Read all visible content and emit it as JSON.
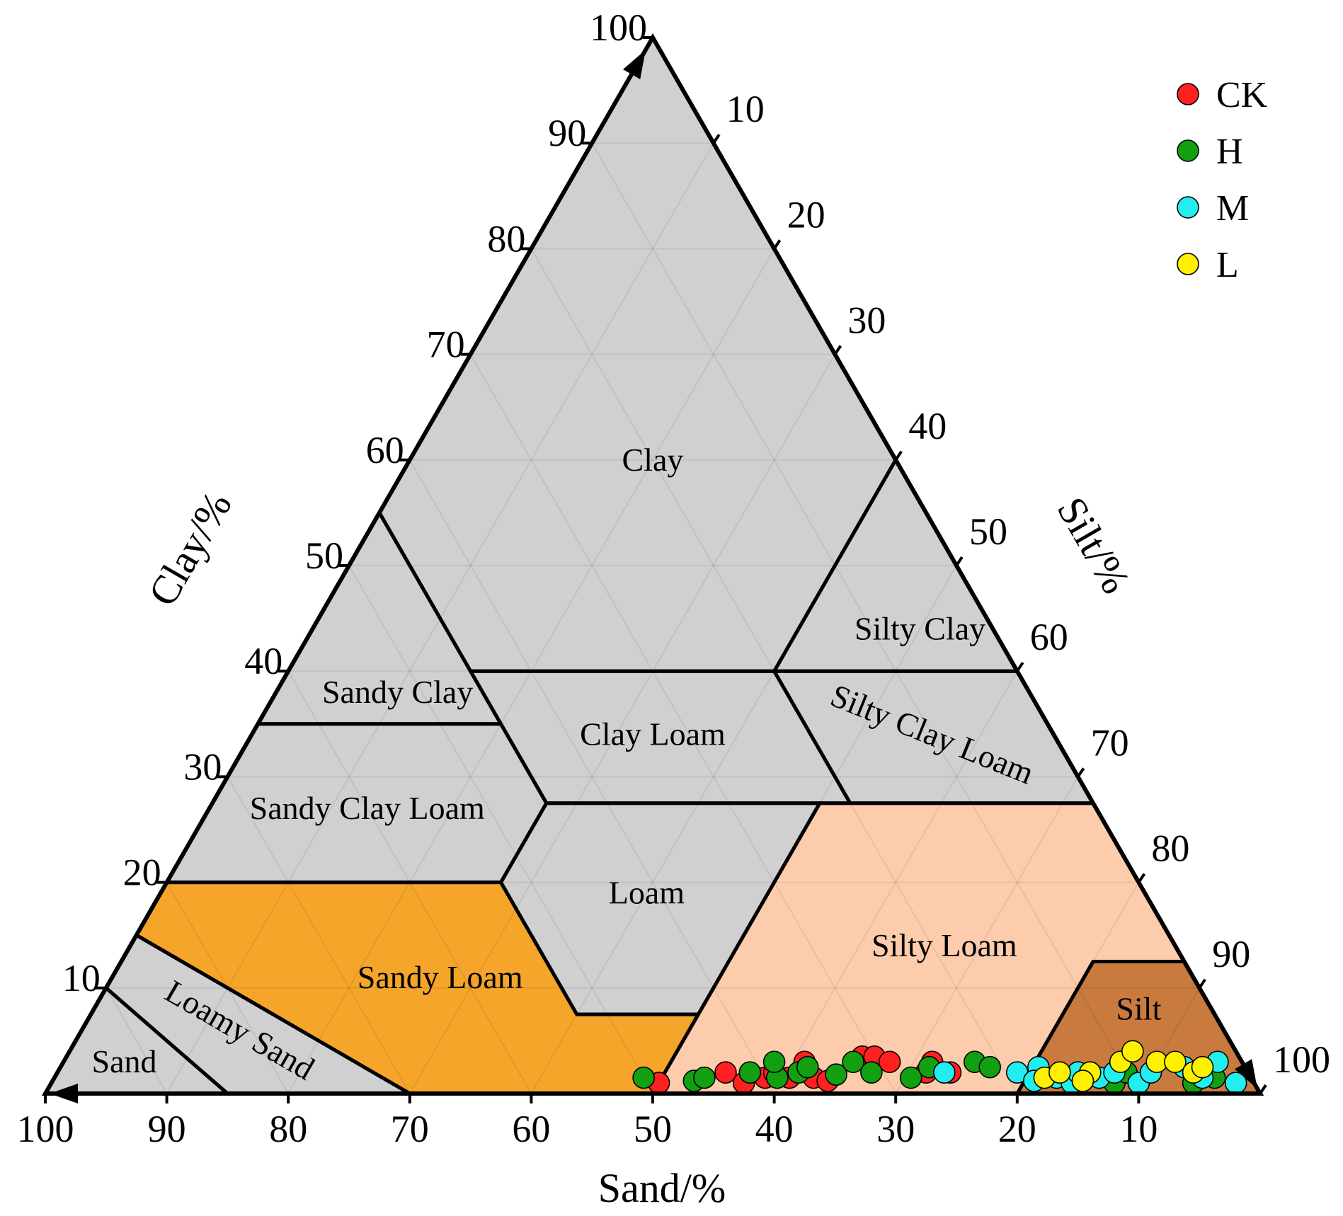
{
  "chart_data": {
    "type": "scatter",
    "subtype": "ternary",
    "axes": {
      "sand": {
        "label": "Sand/%",
        "ticks": [
          "100",
          "90",
          "80",
          "70",
          "60",
          "50",
          "40",
          "30",
          "20",
          "10"
        ]
      },
      "clay": {
        "label": "Clay/%",
        "ticks": [
          "10",
          "20",
          "30",
          "40",
          "50",
          "60",
          "70",
          "80",
          "90",
          "100"
        ]
      },
      "silt": {
        "label": "Silt/%",
        "ticks": [
          "10",
          "20",
          "30",
          "40",
          "50",
          "60",
          "70",
          "80",
          "90",
          "100"
        ]
      }
    },
    "grid": true,
    "legend_position": "top-right",
    "regions": [
      {
        "name": "Clay",
        "label": "Clay",
        "color": "#d0d0d0",
        "vertices": [
          [
            0,
            100,
            0
          ],
          [
            0,
            60,
            40
          ],
          [
            20,
            40,
            40
          ],
          [
            45,
            40,
            15
          ],
          [
            45,
            55,
            0
          ]
        ],
        "label_at": [
          20,
          60,
          20
        ]
      },
      {
        "name": "Sandy Clay",
        "label": "Sandy Clay",
        "color": "#d0d0d0",
        "vertices": [
          [
            45,
            55,
            0
          ],
          [
            45,
            35,
            20
          ],
          [
            65,
            35,
            0
          ]
        ],
        "label_at": [
          52,
          38,
          10
        ]
      },
      {
        "name": "Silty Clay",
        "label": "Silty Clay",
        "color": "#d0d0d0",
        "vertices": [
          [
            0,
            60,
            40
          ],
          [
            0,
            40,
            60
          ],
          [
            20,
            40,
            40
          ]
        ],
        "label_at": [
          6,
          44,
          50
        ]
      },
      {
        "name": "Clay Loam",
        "label": "Clay Loam",
        "color": "#d0d0d0",
        "vertices": [
          [
            20,
            40,
            40
          ],
          [
            45,
            40,
            15
          ],
          [
            45,
            27.5,
            27.5
          ],
          [
            20,
            27.5,
            52.5
          ]
        ],
        "label_at": [
          33,
          34,
          33
        ]
      },
      {
        "name": "Silty Clay Loam",
        "label": "Silty Clay Loam",
        "color": "#d0d0d0",
        "vertices": [
          [
            0,
            40,
            60
          ],
          [
            20,
            40,
            40
          ],
          [
            20,
            27.5,
            52.5
          ],
          [
            0,
            27.5,
            72.5
          ]
        ],
        "label_at": [
          10,
          34,
          56
        ]
      },
      {
        "name": "Sandy Clay Loam",
        "label": "Sandy Clay Loam",
        "color": "#d0d0d0",
        "vertices": [
          [
            45,
            35,
            20
          ],
          [
            45,
            27.5,
            27.5
          ],
          [
            52.5,
            20,
            27.5
          ],
          [
            80,
            20,
            0
          ],
          [
            65,
            35,
            0
          ]
        ],
        "label_at": [
          60,
          27,
          13
        ]
      },
      {
        "name": "Loam",
        "label": "Loam",
        "color": "#d0d0d0",
        "vertices": [
          [
            45,
            27.5,
            27.5
          ],
          [
            52.5,
            20,
            27.5
          ],
          [
            52.5,
            7.5,
            40
          ],
          [
            42.5,
            7.5,
            50
          ],
          [
            22.5,
            27.5,
            50
          ]
        ],
        "label_at": [
          41,
          19,
          40
        ]
      },
      {
        "name": "Sandy Loam",
        "label": "Sandy Loam",
        "color": "#f5a52a",
        "vertices": [
          [
            80,
            20,
            0
          ],
          [
            52.5,
            20,
            27.5
          ],
          [
            52.5,
            7.5,
            40
          ],
          [
            42.5,
            7.5,
            50
          ],
          [
            50,
            0,
            50
          ],
          [
            70,
            0,
            30
          ],
          [
            85,
            15,
            0
          ]
        ],
        "label_at": [
          62,
          11,
          27
        ]
      },
      {
        "name": "Silty Loam",
        "label": "Silty Loam",
        "color": "#fdccac",
        "vertices": [
          [
            22.5,
            27.5,
            50
          ],
          [
            0,
            27.5,
            72.5
          ],
          [
            0,
            12.5,
            87.5
          ],
          [
            7.5,
            12.5,
            80
          ],
          [
            20,
            0,
            80
          ],
          [
            50,
            0,
            50
          ]
        ],
        "label_at": [
          19,
          14,
          67
        ]
      },
      {
        "name": "Silt",
        "label": "Silt",
        "color": "#c87a3f",
        "vertices": [
          [
            7.5,
            12.5,
            80
          ],
          [
            0,
            12.5,
            87.5
          ],
          [
            0,
            0,
            100
          ],
          [
            20,
            0,
            80
          ]
        ],
        "label_at": [
          6,
          8,
          86
        ]
      },
      {
        "name": "Loamy Sand",
        "label": "Loamy Sand",
        "color": "#d0d0d0",
        "vertices": [
          [
            85,
            15,
            0
          ],
          [
            70,
            0,
            30
          ],
          [
            85,
            0,
            15
          ],
          [
            90,
            10,
            0
          ]
        ],
        "label_at": [
          81,
          6,
          13
        ]
      },
      {
        "name": "Sand",
        "label": "Sand",
        "color": "#d0d0d0",
        "vertices": [
          [
            90,
            10,
            0
          ],
          [
            85,
            0,
            15
          ],
          [
            100,
            0,
            0
          ]
        ],
        "label_at": [
          92,
          3,
          5
        ]
      }
    ],
    "series": [
      {
        "name": "CK",
        "color": "#ff2020",
        "points": [
          [
            49,
            1,
            50
          ],
          [
            43,
            2,
            55
          ],
          [
            42,
            1,
            57
          ],
          [
            40,
            1.5,
            58.5
          ],
          [
            39,
            2,
            59
          ],
          [
            38,
            1.5,
            60.5
          ],
          [
            36,
            3,
            61
          ],
          [
            35.5,
            1.5,
            62.5
          ],
          [
            31,
            3.5,
            65.5
          ],
          [
            30,
            3.5,
            66.5
          ],
          [
            29,
            3,
            68
          ],
          [
            26.5,
            2,
            71.5
          ],
          [
            25.5,
            3,
            71.5
          ],
          [
            24.5,
            2,
            73.5
          ],
          [
            35,
            1.2,
            63.8
          ]
        ]
      },
      {
        "name": "H",
        "color": "#12a012",
        "points": [
          [
            50,
            1.5,
            48.5
          ],
          [
            46,
            1.2,
            52.8
          ],
          [
            45,
            1.5,
            53.5
          ],
          [
            41,
            2,
            57
          ],
          [
            39,
            1.5,
            59.5
          ],
          [
            38.5,
            3,
            58.5
          ],
          [
            37,
            2,
            61
          ],
          [
            36,
            2.5,
            61.5
          ],
          [
            32,
            3,
            65
          ],
          [
            31,
            2,
            67
          ],
          [
            28,
            1.5,
            70.5
          ],
          [
            26,
            2.5,
            71.5
          ],
          [
            22,
            3,
            75
          ],
          [
            21,
            2.5,
            76.5
          ],
          [
            11.5,
            1,
            87.5
          ],
          [
            10,
            2,
            88
          ],
          [
            5,
            1,
            94
          ],
          [
            4,
            2,
            94
          ],
          [
            3,
            1.5,
            95.5
          ],
          [
            34,
            1.8,
            64.2
          ]
        ]
      },
      {
        "name": "M",
        "color": "#22eef0",
        "points": [
          [
            25,
            2,
            73
          ],
          [
            19,
            2,
            79
          ],
          [
            17,
            2.5,
            80.5
          ],
          [
            16,
            1.5,
            82.5
          ],
          [
            15,
            1,
            84
          ],
          [
            14,
            2,
            84
          ],
          [
            12.5,
            1.5,
            86
          ],
          [
            11,
            2,
            87
          ],
          [
            9.5,
            1,
            89.5
          ],
          [
            8,
            2,
            90
          ],
          [
            5,
            2.5,
            92.5
          ],
          [
            4,
            1.5,
            94.5
          ],
          [
            2,
            3,
            95
          ],
          [
            1.5,
            1,
            97.5
          ],
          [
            18,
            1.2,
            80.8
          ]
        ]
      },
      {
        "name": "L",
        "color": "#fff000",
        "points": [
          [
            17,
            1.5,
            81.5
          ],
          [
            15.5,
            2,
            82.5
          ],
          [
            13,
            2,
            85
          ],
          [
            10,
            3,
            87
          ],
          [
            8.5,
            4,
            87.5
          ],
          [
            7,
            3,
            90
          ],
          [
            5.5,
            3,
            91.5
          ],
          [
            4.5,
            2,
            93.5
          ],
          [
            3.5,
            2.5,
            94
          ],
          [
            14,
            1.2,
            84.8
          ]
        ]
      }
    ]
  }
}
